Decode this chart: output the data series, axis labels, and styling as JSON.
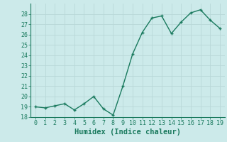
{
  "x": [
    0,
    1,
    2,
    3,
    4,
    5,
    6,
    7,
    8,
    9,
    10,
    11,
    12,
    13,
    14,
    15,
    16,
    17,
    18,
    19
  ],
  "y": [
    19.0,
    18.9,
    19.1,
    19.3,
    18.7,
    19.3,
    20.0,
    18.8,
    18.2,
    21.0,
    24.1,
    26.2,
    27.6,
    27.8,
    26.1,
    27.2,
    28.1,
    28.4,
    27.4,
    26.6
  ],
  "xlabel": "Humidex (Indice chaleur)",
  "ylim": [
    18,
    29
  ],
  "xlim": [
    -0.5,
    19.5
  ],
  "yticks": [
    18,
    19,
    20,
    21,
    22,
    23,
    24,
    25,
    26,
    27,
    28
  ],
  "xticks": [
    0,
    1,
    2,
    3,
    4,
    5,
    6,
    7,
    8,
    9,
    10,
    11,
    12,
    13,
    14,
    15,
    16,
    17,
    18,
    19
  ],
  "line_color": "#1a7a5e",
  "marker": "+",
  "bg_color": "#cceaea",
  "grid_color": "#b8d8d8",
  "tick_label_fontsize": 6.0,
  "xlabel_fontsize": 7.5,
  "linewidth": 1.0,
  "markersize": 3.5,
  "markeredgewidth": 1.0
}
